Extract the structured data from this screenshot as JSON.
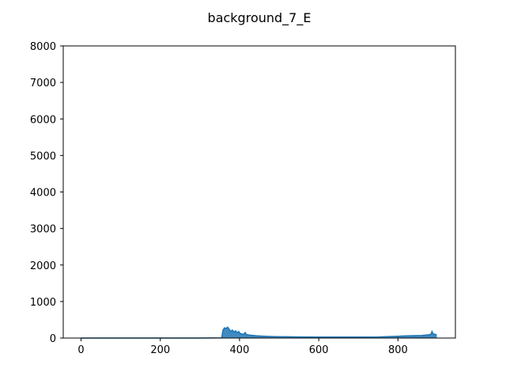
{
  "chart_data": {
    "type": "line",
    "title": "background_7_E",
    "xlabel": "",
    "ylabel": "",
    "xlim": [
      -45,
      945
    ],
    "ylim": [
      0,
      8000
    ],
    "xticks": [
      0,
      200,
      400,
      600,
      800
    ],
    "yticks": [
      0,
      1000,
      2000,
      3000,
      4000,
      5000,
      6000,
      7000,
      8000
    ],
    "grid": false,
    "legend": "none",
    "series": [
      {
        "color": "#1f77b4",
        "x": [
          0,
          100,
          200,
          300,
          355,
          358,
          362,
          366,
          370,
          374,
          378,
          382,
          386,
          390,
          394,
          398,
          402,
          406,
          410,
          414,
          418,
          425,
          435,
          445,
          455,
          470,
          490,
          520,
          560,
          600,
          650,
          700,
          750,
          800,
          820,
          840,
          860,
          870,
          880,
          884,
          886,
          888,
          890,
          894,
          898
        ],
        "y": [
          0,
          0,
          0,
          0,
          5,
          210,
          280,
          260,
          300,
          240,
          180,
          220,
          160,
          200,
          140,
          180,
          120,
          110,
          100,
          150,
          90,
          80,
          70,
          60,
          55,
          45,
          40,
          35,
          30,
          25,
          25,
          25,
          30,
          50,
          60,
          65,
          70,
          80,
          90,
          120,
          180,
          130,
          110,
          100,
          90
        ]
      }
    ]
  }
}
